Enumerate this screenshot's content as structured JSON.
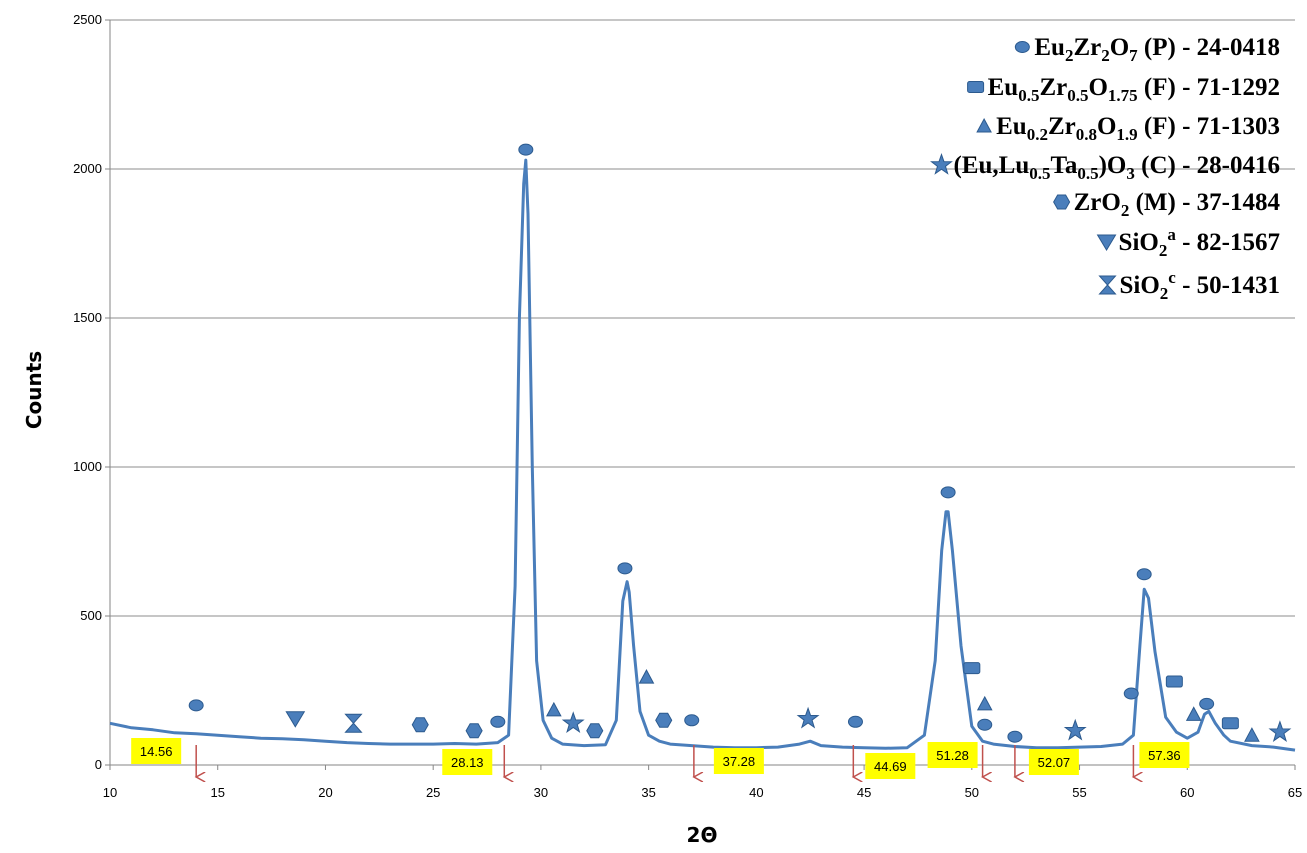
{
  "chart_data": {
    "type": "line",
    "xlabel": "2Θ",
    "ylabel": "Counts",
    "xlim": [
      10,
      65
    ],
    "ylim": [
      0,
      2500
    ],
    "x_ticks": [
      10,
      15,
      20,
      25,
      30,
      35,
      40,
      45,
      50,
      55,
      60,
      65
    ],
    "y_ticks": [
      0,
      500,
      1000,
      1500,
      2000,
      2500
    ],
    "grid": "horizontal",
    "legend_position": "top-right",
    "line_color": "#4a7ebb",
    "series": [
      {
        "x": [
          10.0,
          11.0,
          12.0,
          13.0,
          14.0,
          15.0,
          16.0,
          17.0,
          18.0,
          19.0,
          20.0,
          21.0,
          22.0,
          23.0,
          24.0,
          25.0,
          26.0,
          27.0,
          28.0,
          28.5,
          28.8,
          29.0,
          29.2,
          29.3,
          29.4,
          29.6,
          29.8,
          30.1,
          30.5,
          31.0,
          32.0,
          33.0,
          33.5,
          33.8,
          34.0,
          34.1,
          34.3,
          34.6,
          35.0,
          35.5,
          36.0,
          37.0,
          38.0,
          39.0,
          40.0,
          41.0,
          42.0,
          42.5,
          43.0,
          44.0,
          45.0,
          46.0,
          47.0,
          47.8,
          48.3,
          48.6,
          48.8,
          48.9,
          49.1,
          49.5,
          50.0,
          50.5,
          51.0,
          52.0,
          53.0,
          54.0,
          55.0,
          56.0,
          57.0,
          57.5,
          57.8,
          58.0,
          58.2,
          58.5,
          59.0,
          59.5,
          60.0,
          60.5,
          60.8,
          61.0,
          61.3,
          61.7,
          62.0,
          63.0,
          64.0,
          65.0
        ],
        "y": [
          140,
          125,
          118,
          108,
          105,
          100,
          95,
          90,
          88,
          85,
          80,
          75,
          72,
          70,
          70,
          70,
          72,
          70,
          75,
          100,
          600,
          1500,
          1950,
          2030,
          1850,
          1000,
          350,
          150,
          90,
          70,
          65,
          68,
          150,
          550,
          615,
          580,
          400,
          180,
          100,
          80,
          70,
          65,
          60,
          58,
          58,
          60,
          70,
          80,
          65,
          60,
          58,
          56,
          58,
          100,
          350,
          720,
          850,
          850,
          720,
          400,
          130,
          80,
          70,
          62,
          58,
          58,
          60,
          62,
          70,
          100,
          400,
          590,
          560,
          380,
          160,
          110,
          90,
          110,
          170,
          180,
          140,
          100,
          80,
          65,
          60,
          50
        ]
      }
    ],
    "legend": [
      {
        "marker": "circle",
        "text": "Eu2Zr2O7 (P) - 24-0418"
      },
      {
        "marker": "rect",
        "text": "Eu0.5Zr0.5O1.75 (F) - 71-1292"
      },
      {
        "marker": "triangle",
        "text": "Eu0.2Zr0.8O1.9 (F) - 71-1303"
      },
      {
        "marker": "star",
        "text": "(Eu,Lu0.5Ta0.5)O3 (C) - 28-0416"
      },
      {
        "marker": "hexagon",
        "text": "ZrO2 (M) - 37-1484"
      },
      {
        "marker": "triangle-down",
        "text": "SiO2a - 82-1567"
      },
      {
        "marker": "hourglass",
        "text": "SiO2c - 50-1431"
      }
    ],
    "peak_markers": [
      {
        "marker": "circle",
        "x": 14.0,
        "y": 200
      },
      {
        "marker": "circle",
        "x": 28.0,
        "y": 145
      },
      {
        "marker": "circle",
        "x": 29.3,
        "y": 2065
      },
      {
        "marker": "circle",
        "x": 33.9,
        "y": 660
      },
      {
        "marker": "circle",
        "x": 37.0,
        "y": 150
      },
      {
        "marker": "circle",
        "x": 44.6,
        "y": 145
      },
      {
        "marker": "circle",
        "x": 48.9,
        "y": 915
      },
      {
        "marker": "circle",
        "x": 50.6,
        "y": 135
      },
      {
        "marker": "circle",
        "x": 52.0,
        "y": 95
      },
      {
        "marker": "circle",
        "x": 57.4,
        "y": 240
      },
      {
        "marker": "circle",
        "x": 58.0,
        "y": 640
      },
      {
        "marker": "circle",
        "x": 60.9,
        "y": 205
      },
      {
        "marker": "rect",
        "x": 50.0,
        "y": 325
      },
      {
        "marker": "rect",
        "x": 59.4,
        "y": 280
      },
      {
        "marker": "rect",
        "x": 62.0,
        "y": 140
      },
      {
        "marker": "triangle",
        "x": 30.6,
        "y": 185
      },
      {
        "marker": "triangle",
        "x": 34.9,
        "y": 295
      },
      {
        "marker": "triangle",
        "x": 50.6,
        "y": 205
      },
      {
        "marker": "triangle",
        "x": 60.3,
        "y": 170
      },
      {
        "marker": "triangle",
        "x": 63.0,
        "y": 100
      },
      {
        "marker": "star",
        "x": 31.5,
        "y": 140
      },
      {
        "marker": "star",
        "x": 42.4,
        "y": 155
      },
      {
        "marker": "star",
        "x": 54.8,
        "y": 115
      },
      {
        "marker": "star",
        "x": 64.3,
        "y": 110
      },
      {
        "marker": "hexagon",
        "x": 24.4,
        "y": 135
      },
      {
        "marker": "hexagon",
        "x": 26.9,
        "y": 115
      },
      {
        "marker": "hexagon",
        "x": 32.5,
        "y": 115
      },
      {
        "marker": "hexagon",
        "x": 35.7,
        "y": 150
      },
      {
        "marker": "triangle-down",
        "x": 18.6,
        "y": 155
      },
      {
        "marker": "hourglass",
        "x": 21.3,
        "y": 140
      }
    ],
    "annotations": [
      {
        "label": "14.56",
        "x": 14.0
      },
      {
        "label": "28.13",
        "x": 28.3
      },
      {
        "label": "37.28",
        "x": 37.1
      },
      {
        "label": "44.69",
        "x": 44.5
      },
      {
        "label": "51.28",
        "x": 50.5
      },
      {
        "label": "52.07",
        "x": 52.0
      },
      {
        "label": "57.36",
        "x": 57.5
      }
    ],
    "annotation_style": {
      "box_color": "#ffff00",
      "arrow_color": "#c0504d"
    }
  }
}
